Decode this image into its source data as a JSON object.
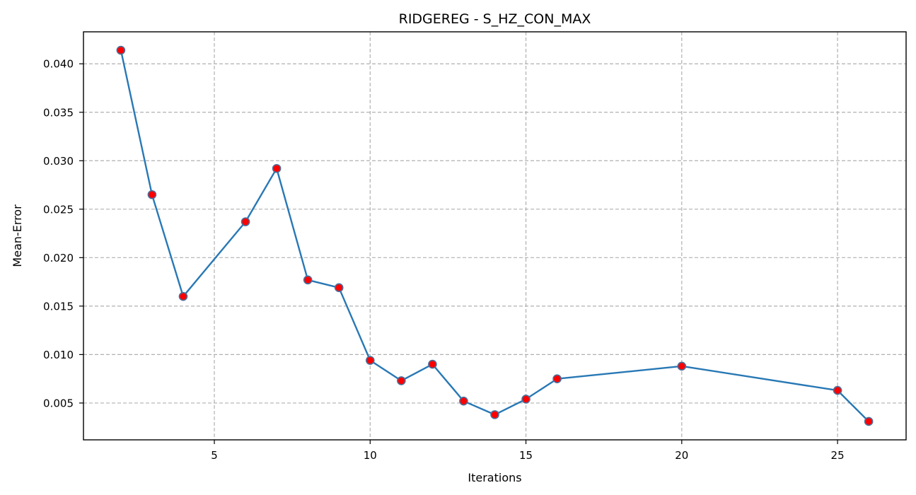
{
  "chart_data": {
    "type": "line",
    "title": "RIDGEREG - S_HZ_CON_MAX",
    "xlabel": "Iterations",
    "ylabel": "Mean-Error",
    "xlim": [
      0.8,
      27.2
    ],
    "ylim": [
      0.0012,
      0.0433
    ],
    "xticks": [
      5,
      10,
      15,
      20,
      25
    ],
    "yticks": [
      0.005,
      0.01,
      0.015,
      0.02,
      0.025,
      0.03,
      0.035,
      0.04
    ],
    "xtick_labels": [
      "5",
      "10",
      "15",
      "20",
      "25"
    ],
    "ytick_labels": [
      "0.005",
      "0.010",
      "0.015",
      "0.020",
      "0.025",
      "0.030",
      "0.035",
      "0.040"
    ],
    "grid": true,
    "line_color": "#2878b5",
    "marker_fill": "#ff0000",
    "marker_edge": "#4a6f9a",
    "series": [
      {
        "x": [
          2,
          3,
          4,
          6,
          7,
          8,
          9,
          10,
          11,
          12,
          13,
          14,
          15,
          16,
          20,
          25,
          26
        ],
        "values": [
          0.0414,
          0.0265,
          0.016,
          0.0237,
          0.0292,
          0.0177,
          0.0169,
          0.0094,
          0.0073,
          0.009,
          0.0052,
          0.0038,
          0.0054,
          0.0075,
          0.0088,
          0.0063,
          0.0031
        ]
      }
    ]
  }
}
